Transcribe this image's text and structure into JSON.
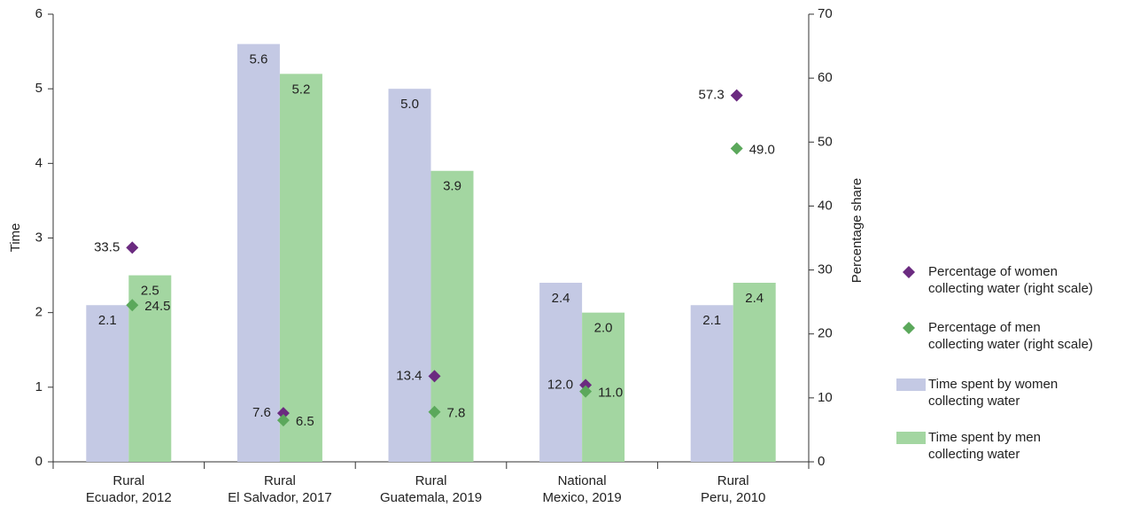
{
  "chart_data": {
    "type": "bar",
    "y_label": "Time",
    "y2_label": "Percentage share",
    "categories": [
      "Rural\nEcuador, 2012",
      "Rural\nEl Salvador, 2017",
      "Rural\nGuatemala, 2019",
      "National\nMexico, 2019",
      "Rural\nPeru, 2010"
    ],
    "ylim": [
      0,
      6
    ],
    "yticks": [
      0,
      1,
      2,
      3,
      4,
      5,
      6
    ],
    "y2lim": [
      0,
      70
    ],
    "y2ticks": [
      0,
      10,
      20,
      30,
      40,
      50,
      60,
      70
    ],
    "legend": "right",
    "series": [
      {
        "name": "Percentage of women\ncollecting water (right scale)",
        "type": "scatter",
        "marker": "diamond",
        "axis": "y2",
        "color": "#6b2b80",
        "values": [
          33.5,
          7.6,
          13.4,
          12.0,
          57.3
        ],
        "value_labels": [
          "33.5",
          "7.6",
          "13.4",
          "12.0",
          "57.3"
        ]
      },
      {
        "name": "Percentage of men\ncollecting water (right scale)",
        "type": "scatter",
        "marker": "diamond",
        "axis": "y2",
        "color": "#5ba85b",
        "values": [
          24.5,
          6.5,
          7.8,
          11.0,
          49.0
        ],
        "value_labels": [
          "24.5",
          "6.5",
          "7.8",
          "11.0",
          "49.0"
        ]
      },
      {
        "name": "Time spent by women\ncollecting water",
        "type": "bar",
        "color": "#c4c9e4",
        "values": [
          2.1,
          5.6,
          5.0,
          2.4,
          2.1
        ],
        "value_labels": [
          "2.1",
          "5.6",
          "5.0",
          "2.4",
          "2.1"
        ]
      },
      {
        "name": "Time spent by men\ncollecting water",
        "type": "bar",
        "color": "#a3d6a1",
        "values": [
          2.5,
          5.2,
          3.9,
          2.0,
          2.4
        ],
        "value_labels": [
          "2.5",
          "5.2",
          "3.9",
          "2.0",
          "2.4"
        ]
      }
    ]
  }
}
